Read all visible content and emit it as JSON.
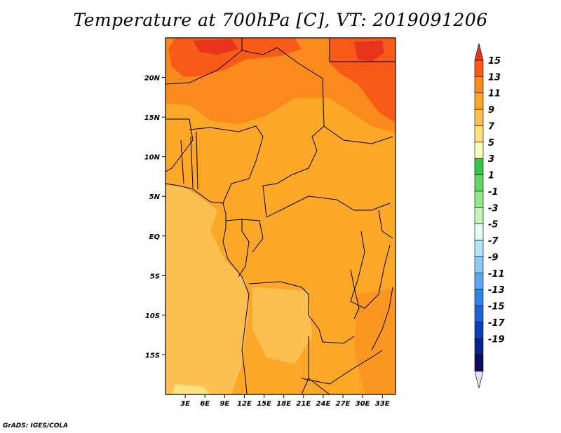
{
  "title": "Temperature at 700hPa [C], VT: 2019091206",
  "credit": "GrADS: IGES/COLA",
  "map": {
    "lon_range": [
      0,
      35
    ],
    "lat_range": [
      -20,
      25
    ],
    "lat_ticks": [
      {
        "value": 20,
        "label": "20N"
      },
      {
        "value": 15,
        "label": "15N"
      },
      {
        "value": 10,
        "label": "10N"
      },
      {
        "value": 5,
        "label": "5N"
      },
      {
        "value": 0,
        "label": "EQ"
      },
      {
        "value": -5,
        "label": "5S"
      },
      {
        "value": -10,
        "label": "10S"
      },
      {
        "value": -15,
        "label": "15S"
      }
    ],
    "lon_ticks": [
      {
        "value": 3,
        "label": "3E"
      },
      {
        "value": 6,
        "label": "6E"
      },
      {
        "value": 9,
        "label": "9E"
      },
      {
        "value": 12,
        "label": "12E"
      },
      {
        "value": 15,
        "label": "15E"
      },
      {
        "value": 18,
        "label": "18E"
      },
      {
        "value": 21,
        "label": "21E"
      },
      {
        "value": 24,
        "label": "24E"
      },
      {
        "value": 27,
        "label": "27E"
      },
      {
        "value": 30,
        "label": "30E"
      },
      {
        "value": 33,
        "label": "33E"
      }
    ]
  },
  "colorbar": {
    "labels": [
      "15",
      "13",
      "11",
      "9",
      "7",
      "5",
      "3",
      "1",
      "-1",
      "-3",
      "-5",
      "-7",
      "-9",
      "-11",
      "-13",
      "-15",
      "-17",
      "-19"
    ],
    "colors": [
      "#e8331f",
      "#f85b18",
      "#fa8a1c",
      "#fca727",
      "#fcc052",
      "#fde080",
      "#fefabf",
      "#37c24a",
      "#62d664",
      "#92e68c",
      "#c1f5bc",
      "#e3fbfa",
      "#b4e4fa",
      "#8cc8f5",
      "#5aa6f0",
      "#2e84e7",
      "#1c63d6",
      "#0d40b8",
      "#08238a",
      "#0c0c5a",
      "#e0e0f5"
    ]
  }
}
